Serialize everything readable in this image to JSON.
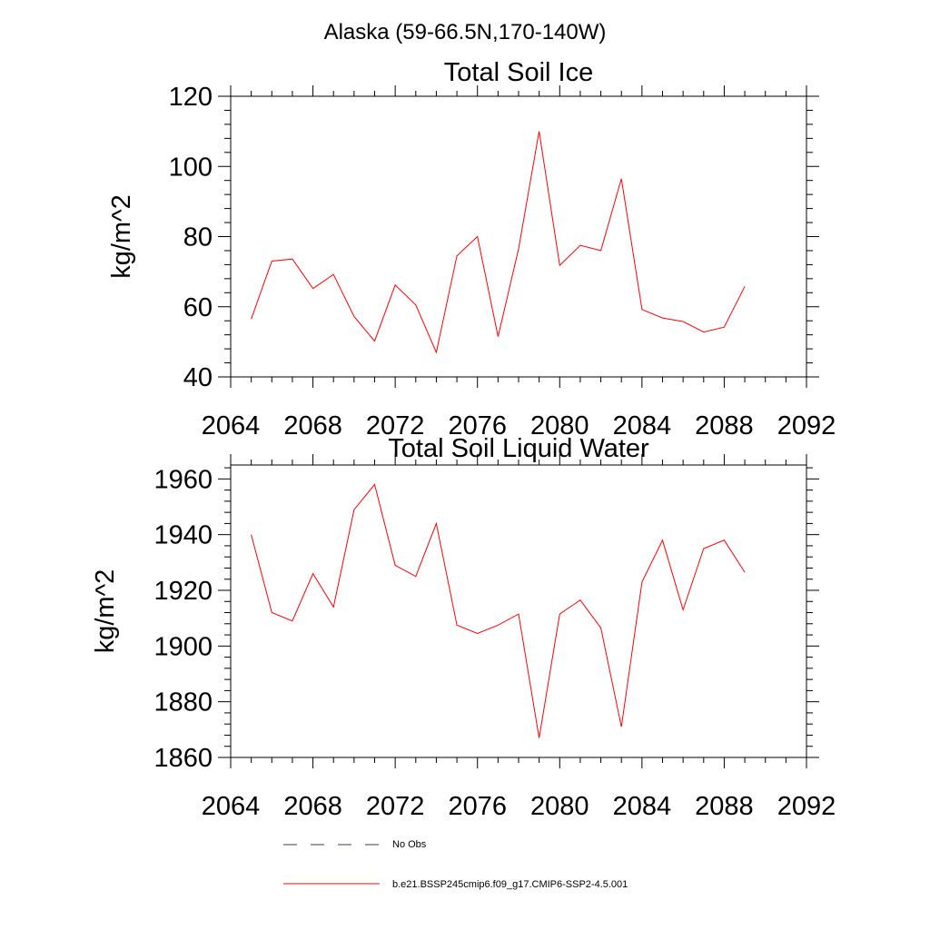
{
  "figure": {
    "title": "Alaska (59-66.5N,170-140W)"
  },
  "chart_data": [
    {
      "type": "line",
      "title": "Total Soil Ice",
      "xlabel": "",
      "ylabel": "kg/m^2",
      "xlim": [
        2064,
        2092
      ],
      "ylim": [
        40,
        120
      ],
      "xticks": [
        2064,
        2068,
        2072,
        2076,
        2080,
        2084,
        2088,
        2092
      ],
      "yticks": [
        40,
        60,
        80,
        100,
        120
      ],
      "x": [
        2065,
        2066,
        2067,
        2068,
        2069,
        2070,
        2071,
        2072,
        2073,
        2074,
        2075,
        2076,
        2077,
        2078,
        2079,
        2080,
        2081,
        2082,
        2083,
        2084,
        2085,
        2086,
        2087,
        2088,
        2089
      ],
      "series": [
        {
          "name": "b.e21.BSSP245cmip6.f09_g17.CMIP6-SSP2-4.5.001",
          "color": "#ff0000",
          "values": [
            56.5,
            73.0,
            73.6,
            65.2,
            69.2,
            57.2,
            50.2,
            66.2,
            60.5,
            47.0,
            74.5,
            80.0,
            51.5,
            76.5,
            110.0,
            71.8,
            77.5,
            76.0,
            96.5,
            59.2,
            56.8,
            55.8,
            52.8,
            54.2,
            65.8
          ]
        }
      ]
    },
    {
      "type": "line",
      "title": "Total Soil Liquid Water",
      "xlabel": "",
      "ylabel": "kg/m^2",
      "xlim": [
        2064,
        2092
      ],
      "ylim": [
        1860,
        1965
      ],
      "xticks": [
        2064,
        2068,
        2072,
        2076,
        2080,
        2084,
        2088,
        2092
      ],
      "yticks": [
        1860,
        1880,
        1900,
        1920,
        1940,
        1960
      ],
      "x": [
        2065,
        2066,
        2067,
        2068,
        2069,
        2070,
        2071,
        2072,
        2073,
        2074,
        2075,
        2076,
        2077,
        2078,
        2079,
        2080,
        2081,
        2082,
        2083,
        2084,
        2085,
        2086,
        2087,
        2088,
        2089
      ],
      "series": [
        {
          "name": "b.e21.BSSP245cmip6.f09_g17.CMIP6-SSP2-4.5.001",
          "color": "#ff0000",
          "values": [
            1940,
            1912,
            1909,
            1926,
            1914,
            1949,
            1958,
            1929,
            1925,
            1944,
            1907.5,
            1904.5,
            1907.5,
            1911.5,
            1867,
            1911.5,
            1916.5,
            1906.5,
            1871,
            1923,
            1938,
            1913,
            1935,
            1938,
            1926.5
          ]
        }
      ]
    }
  ],
  "legend": {
    "items": [
      {
        "label": "No Obs",
        "color": "#3a3a5a",
        "style": "dashed"
      },
      {
        "label": "b.e21.BSSP245cmip6.f09_g17.CMIP6-SSP2-4.5.001",
        "color": "#ff0000",
        "style": "solid"
      }
    ]
  }
}
